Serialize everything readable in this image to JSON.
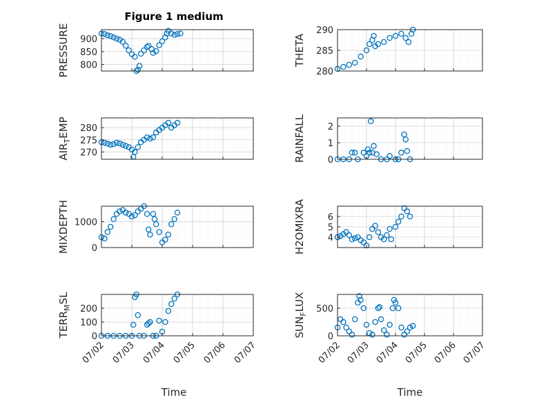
{
  "figure": {
    "title": "Figure 1 medium",
    "marker_color": "#0072BD"
  },
  "chart_data": [
    {
      "type": "scatter",
      "title": "Figure 1 medium",
      "ylabel": "PRESSURE",
      "ylim": [
        775,
        935
      ],
      "yticks": [
        800,
        850,
        900
      ],
      "yticklabels": [
        "800",
        "850",
        "900"
      ],
      "x": [
        "07/02",
        "07/03",
        "07/04",
        "07/05",
        "07/06"
      ],
      "points": [
        [
          0,
          920
        ],
        [
          0.1,
          918
        ],
        [
          0.2,
          913
        ],
        [
          0.3,
          910
        ],
        [
          0.4,
          905
        ],
        [
          0.5,
          900
        ],
        [
          0.6,
          896
        ],
        [
          0.7,
          888
        ],
        [
          0.8,
          873
        ],
        [
          0.9,
          855
        ],
        [
          1,
          840
        ],
        [
          1.1,
          830
        ],
        [
          1.15,
          775
        ],
        [
          1.2,
          780
        ],
        [
          1.25,
          795
        ],
        [
          1.3,
          842
        ],
        [
          1.4,
          855
        ],
        [
          1.5,
          868
        ],
        [
          1.55,
          872
        ],
        [
          1.65,
          860
        ],
        [
          1.7,
          845
        ],
        [
          1.8,
          852
        ],
        [
          1.9,
          875
        ],
        [
          2,
          890
        ],
        [
          2.1,
          905
        ],
        [
          2.15,
          920
        ],
        [
          2.2,
          930
        ],
        [
          2.3,
          920
        ],
        [
          2.4,
          915
        ],
        [
          2.5,
          918
        ],
        [
          2.6,
          920
        ]
      ]
    },
    {
      "type": "scatter",
      "ylabel": "THETA",
      "ylim": [
        280,
        290
      ],
      "yticks": [
        280,
        285,
        290
      ],
      "yticklabels": [
        "280",
        "285",
        "290"
      ],
      "x": [
        "07/02",
        "07/03",
        "07/04",
        "07/05",
        "07/06"
      ],
      "points": [
        [
          0,
          280.5
        ],
        [
          0.2,
          281
        ],
        [
          0.4,
          281.5
        ],
        [
          0.6,
          282
        ],
        [
          0.8,
          283.5
        ],
        [
          1,
          285
        ],
        [
          1.1,
          286.5
        ],
        [
          1.2,
          287.5
        ],
        [
          1.25,
          288.5
        ],
        [
          1.3,
          286
        ],
        [
          1.4,
          286.5
        ],
        [
          1.6,
          287
        ],
        [
          1.8,
          288
        ],
        [
          2,
          288.5
        ],
        [
          2.2,
          289
        ],
        [
          2.35,
          288
        ],
        [
          2.45,
          287
        ],
        [
          2.55,
          289
        ],
        [
          2.6,
          290
        ]
      ]
    },
    {
      "type": "scatter",
      "ylabel": "AIR_TEMP",
      "ylim": [
        267,
        284
      ],
      "yticks": [
        270,
        275,
        280
      ],
      "yticklabels": [
        "270",
        "275",
        "280"
      ],
      "x": [
        "07/02",
        "07/03",
        "07/04",
        "07/05",
        "07/06"
      ],
      "points": [
        [
          0,
          274
        ],
        [
          0.1,
          273.8
        ],
        [
          0.2,
          273.4
        ],
        [
          0.3,
          273
        ],
        [
          0.4,
          273.2
        ],
        [
          0.5,
          273.8
        ],
        [
          0.6,
          273.5
        ],
        [
          0.7,
          273
        ],
        [
          0.8,
          272.5
        ],
        [
          0.9,
          272
        ],
        [
          1,
          271
        ],
        [
          1.05,
          268
        ],
        [
          1.1,
          270
        ],
        [
          1.2,
          272
        ],
        [
          1.3,
          274
        ],
        [
          1.4,
          275
        ],
        [
          1.5,
          276
        ],
        [
          1.6,
          275.5
        ],
        [
          1.7,
          276
        ],
        [
          1.8,
          278
        ],
        [
          1.9,
          279
        ],
        [
          2,
          280
        ],
        [
          2.1,
          281
        ],
        [
          2.2,
          282
        ],
        [
          2.3,
          280
        ],
        [
          2.4,
          281
        ],
        [
          2.5,
          282
        ]
      ]
    },
    {
      "type": "scatter",
      "ylabel": "RAINFALL",
      "ylim": [
        0,
        2.5
      ],
      "yticks": [
        0,
        1,
        2
      ],
      "yticklabels": [
        "0",
        "1",
        "2"
      ],
      "x": [
        "07/02",
        "07/03",
        "07/04",
        "07/05",
        "07/06"
      ],
      "points": [
        [
          0,
          0
        ],
        [
          0.2,
          0
        ],
        [
          0.4,
          0
        ],
        [
          0.5,
          0.4
        ],
        [
          0.6,
          0.4
        ],
        [
          0.7,
          0
        ],
        [
          0.9,
          0.4
        ],
        [
          1,
          0.2
        ],
        [
          1.05,
          0.6
        ],
        [
          1.1,
          0.4
        ],
        [
          1.15,
          2.3
        ],
        [
          1.2,
          0.4
        ],
        [
          1.25,
          0.8
        ],
        [
          1.35,
          0.3
        ],
        [
          1.5,
          0
        ],
        [
          1.7,
          0
        ],
        [
          1.8,
          0.2
        ],
        [
          2,
          0
        ],
        [
          2.1,
          0
        ],
        [
          2.2,
          0.4
        ],
        [
          2.3,
          1.5
        ],
        [
          2.35,
          1.2
        ],
        [
          2.4,
          0.5
        ],
        [
          2.5,
          0
        ]
      ]
    },
    {
      "type": "scatter",
      "ylabel": "MIXDEPTH",
      "ylim": [
        0,
        1600
      ],
      "yticks": [
        0,
        1000
      ],
      "yticklabels": [
        "0",
        "1000"
      ],
      "x": [
        "07/02",
        "07/03",
        "07/04",
        "07/05",
        "07/06"
      ],
      "points": [
        [
          0,
          400
        ],
        [
          0.1,
          350
        ],
        [
          0.2,
          600
        ],
        [
          0.3,
          800
        ],
        [
          0.4,
          1100
        ],
        [
          0.5,
          1300
        ],
        [
          0.6,
          1400
        ],
        [
          0.7,
          1450
        ],
        [
          0.8,
          1350
        ],
        [
          0.9,
          1300
        ],
        [
          1,
          1200
        ],
        [
          1.1,
          1250
        ],
        [
          1.2,
          1400
        ],
        [
          1.3,
          1500
        ],
        [
          1.4,
          1600
        ],
        [
          1.5,
          1300
        ],
        [
          1.55,
          700
        ],
        [
          1.6,
          500
        ],
        [
          1.7,
          1300
        ],
        [
          1.75,
          1100
        ],
        [
          1.8,
          900
        ],
        [
          1.9,
          600
        ],
        [
          2,
          200
        ],
        [
          2.1,
          300
        ],
        [
          2.2,
          500
        ],
        [
          2.3,
          900
        ],
        [
          2.4,
          1100
        ],
        [
          2.5,
          1350
        ]
      ]
    },
    {
      "type": "scatter",
      "ylabel": "H2OMIXRA",
      "ylim": [
        3,
        7
      ],
      "yticks": [
        4,
        5,
        6
      ],
      "yticklabels": [
        "4",
        "5",
        "6"
      ],
      "x": [
        "07/02",
        "07/03",
        "07/04",
        "07/05",
        "07/06"
      ],
      "points": [
        [
          0,
          4
        ],
        [
          0.1,
          4.1
        ],
        [
          0.2,
          4.3
        ],
        [
          0.3,
          4.5
        ],
        [
          0.4,
          4.2
        ],
        [
          0.5,
          3.8
        ],
        [
          0.6,
          3.9
        ],
        [
          0.7,
          4
        ],
        [
          0.8,
          3.7
        ],
        [
          0.9,
          3.5
        ],
        [
          1,
          3.2
        ],
        [
          1.1,
          4
        ],
        [
          1.2,
          4.8
        ],
        [
          1.3,
          5.1
        ],
        [
          1.4,
          4.5
        ],
        [
          1.5,
          4
        ],
        [
          1.6,
          3.8
        ],
        [
          1.7,
          4.2
        ],
        [
          1.8,
          4.8
        ],
        [
          1.85,
          3.8
        ],
        [
          2,
          5
        ],
        [
          2.1,
          5.5
        ],
        [
          2.2,
          6
        ],
        [
          2.3,
          6.8
        ],
        [
          2.4,
          6.5
        ],
        [
          2.5,
          6
        ]
      ]
    },
    {
      "type": "scatter",
      "ylabel": "TERR_MSL",
      "ylim": [
        0,
        300
      ],
      "yticks": [
        0,
        100,
        200
      ],
      "yticklabels": [
        "0",
        "100",
        "200"
      ],
      "x": [
        "07/02",
        "07/03",
        "07/04",
        "07/05",
        "07/06"
      ],
      "points": [
        [
          0,
          0
        ],
        [
          0.2,
          0
        ],
        [
          0.4,
          0
        ],
        [
          0.6,
          0
        ],
        [
          0.8,
          0
        ],
        [
          1,
          0
        ],
        [
          1.05,
          80
        ],
        [
          1.1,
          280
        ],
        [
          1.15,
          300
        ],
        [
          1.2,
          150
        ],
        [
          1.25,
          0
        ],
        [
          1.4,
          0
        ],
        [
          1.5,
          80
        ],
        [
          1.55,
          90
        ],
        [
          1.6,
          100
        ],
        [
          1.7,
          0
        ],
        [
          1.8,
          0
        ],
        [
          1.9,
          110
        ],
        [
          2,
          30
        ],
        [
          2.1,
          100
        ],
        [
          2.2,
          180
        ],
        [
          2.3,
          230
        ],
        [
          2.4,
          270
        ],
        [
          2.5,
          300
        ]
      ]
    },
    {
      "type": "scatter",
      "ylabel": "SUN_FLUX",
      "ylim": [
        0,
        750
      ],
      "yticks": [
        0,
        500
      ],
      "yticklabels": [
        "0",
        "500"
      ],
      "x": [
        "07/02",
        "07/03",
        "07/04",
        "07/05",
        "07/06"
      ],
      "points": [
        [
          0,
          150
        ],
        [
          0.1,
          300
        ],
        [
          0.2,
          250
        ],
        [
          0.3,
          150
        ],
        [
          0.4,
          80
        ],
        [
          0.5,
          20
        ],
        [
          0.6,
          300
        ],
        [
          0.7,
          600
        ],
        [
          0.75,
          720
        ],
        [
          0.8,
          650
        ],
        [
          0.9,
          500
        ],
        [
          1,
          200
        ],
        [
          1.1,
          50
        ],
        [
          1.2,
          20
        ],
        [
          1.3,
          250
        ],
        [
          1.4,
          500
        ],
        [
          1.45,
          520
        ],
        [
          1.5,
          300
        ],
        [
          1.6,
          100
        ],
        [
          1.7,
          20
        ],
        [
          1.8,
          200
        ],
        [
          1.9,
          500
        ],
        [
          1.95,
          650
        ],
        [
          2,
          600
        ],
        [
          2.1,
          500
        ],
        [
          2.2,
          150
        ],
        [
          2.3,
          20
        ],
        [
          2.4,
          80
        ],
        [
          2.5,
          150
        ],
        [
          2.6,
          180
        ]
      ]
    }
  ],
  "x_axis": {
    "ticklabels": [
      "07/02",
      "07/03",
      "07/04",
      "07/05",
      "07/06",
      "07/07"
    ],
    "xlabel": "Time"
  }
}
